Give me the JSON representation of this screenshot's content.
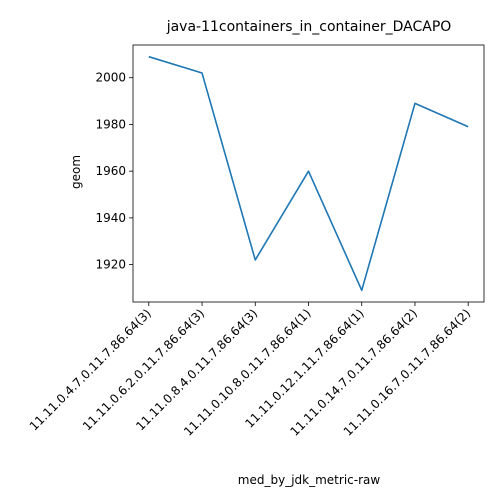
{
  "chart_data": {
    "type": "line",
    "title": "java-11containers_in_container_DACAPO",
    "xlabel": "med_by_jdk_metric-raw",
    "ylabel": "geom",
    "categories": [
      "11.11.0.4.7.0.11.7.86.64(3)",
      "11.11.0.6.2.0.11.7.86.64(3)",
      "11.11.0.8.4.0.11.7.86.64(3)",
      "11.11.0.10.8.0.11.7.86.64(1)",
      "11.11.0.12.1.11.7.86.64(1)",
      "11.11.0.14.7.0.11.7.86.64(2)",
      "11.11.0.16.7.0.11.7.86.64(2)"
    ],
    "series": [
      {
        "values": [
          2009,
          2002,
          1922,
          1960,
          1909,
          1989,
          1979
        ]
      }
    ],
    "yticks": [
      1920,
      1940,
      1960,
      1980,
      2000
    ],
    "ylim": [
      1904,
      2014
    ],
    "grid": false,
    "legend": "none",
    "line_color": "#1f77b4"
  }
}
